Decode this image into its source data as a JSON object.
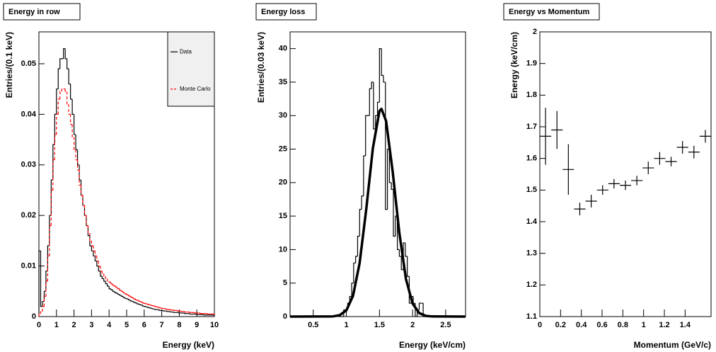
{
  "chart_data": [
    {
      "type": "histogram",
      "title": "Energy in row",
      "xlabel": "Energy (keV)",
      "ylabel": "Entries/(0.1 keV)",
      "xlim": [
        0,
        10
      ],
      "xticks": [
        0,
        1,
        2,
        3,
        4,
        5,
        6,
        7,
        8,
        9,
        10
      ],
      "ylim": [
        0,
        0.0563
      ],
      "yticks": [
        0,
        0.01,
        0.02,
        0.03,
        0.04,
        0.05
      ],
      "legend": "top-right",
      "bins": [
        0,
        0.1,
        0.2,
        0.3,
        0.4,
        0.5,
        0.6,
        0.7,
        0.8,
        0.9,
        1,
        1.1,
        1.2,
        1.3,
        1.4,
        1.5,
        1.6,
        1.7,
        1.8,
        1.9,
        2,
        2.1,
        2.2,
        2.3,
        2.4,
        2.5,
        2.6,
        2.7,
        2.8,
        2.9,
        3,
        3.1,
        3.2,
        3.3,
        3.4,
        3.5,
        3.6,
        3.7,
        3.8,
        3.9,
        4,
        4.1,
        4.2,
        4.3,
        4.4,
        4.5,
        4.6,
        4.7,
        4.8,
        4.9,
        5,
        5.1,
        5.2,
        5.3,
        5.4,
        5.5,
        5.6,
        5.7,
        5.8,
        5.9,
        6,
        6.1,
        6.2,
        6.3,
        6.4,
        6.5,
        6.6,
        6.7,
        6.8,
        6.9,
        7,
        7.1,
        7.2,
        7.3,
        7.4,
        7.5,
        7.6,
        7.7,
        7.8,
        7.9,
        8,
        8.1,
        8.2,
        8.3,
        8.4,
        8.5,
        8.6,
        8.7,
        8.8,
        8.9,
        9,
        9.1,
        9.2,
        9.3,
        9.4,
        9.5,
        9.6,
        9.7,
        9.8,
        9.9,
        10
      ],
      "series": [
        {
          "name": "Data",
          "color": "#000000",
          "line_style": "solid",
          "values": [
            0.013,
            0.002,
            0.003,
            0.005,
            0.009,
            0.014,
            0.02,
            0.027,
            0.034,
            0.04,
            0.045,
            0.049,
            0.051,
            0.051,
            0.053,
            0.051,
            0.049,
            0.046,
            0.043,
            0.04,
            0.036,
            0.033,
            0.03,
            0.027,
            0.024,
            0.022,
            0.02,
            0.018,
            0.016,
            0.014,
            0.013,
            0.012,
            0.011,
            0.01,
            0.009,
            0.008,
            0.0075,
            0.007,
            0.0065,
            0.006,
            0.0055,
            0.0053,
            0.005,
            0.0048,
            0.0046,
            0.0044,
            0.0042,
            0.004,
            0.0038,
            0.0036,
            0.0035,
            0.0033,
            0.0031,
            0.003,
            0.0028,
            0.0027,
            0.0025,
            0.0024,
            0.0023,
            0.0021,
            0.002,
            0.0019,
            0.0018,
            0.0017,
            0.0016,
            0.0015,
            0.0014,
            0.0014,
            0.0013,
            0.0012,
            0.0012,
            0.0011,
            0.0011,
            0.001,
            0.001,
            0.0009,
            0.0009,
            0.0008,
            0.0008,
            0.0008,
            0.0007,
            0.0007,
            0.0007,
            0.0006,
            0.0006,
            0.0006,
            0.0005,
            0.0005,
            0.0005,
            0.0005,
            0.0004,
            0.0004,
            0.0004,
            0.0004,
            0.0003,
            0.0003,
            0.0003,
            0.0003,
            0.0003,
            0.0003
          ]
        },
        {
          "name": "Monte Carlo",
          "color": "#ff0000",
          "line_style": "dashed",
          "values": [
            0.0005,
            0.001,
            0.002,
            0.004,
            0.007,
            0.012,
            0.018,
            0.025,
            0.031,
            0.036,
            0.04,
            0.043,
            0.0445,
            0.045,
            0.045,
            0.0445,
            0.042,
            0.04,
            0.038,
            0.0355,
            0.033,
            0.031,
            0.029,
            0.026,
            0.024,
            0.022,
            0.02,
            0.018,
            0.0165,
            0.015,
            0.014,
            0.013,
            0.012,
            0.011,
            0.01,
            0.009,
            0.0085,
            0.008,
            0.0075,
            0.007,
            0.0068,
            0.0065,
            0.0062,
            0.006,
            0.0057,
            0.0055,
            0.0052,
            0.005,
            0.0047,
            0.0045,
            0.0043,
            0.0041,
            0.0039,
            0.0037,
            0.0035,
            0.0033,
            0.0032,
            0.003,
            0.0029,
            0.0027,
            0.0026,
            0.0025,
            0.0024,
            0.0023,
            0.0022,
            0.0021,
            0.002,
            0.0019,
            0.0018,
            0.0017,
            0.0016,
            0.0016,
            0.0015,
            0.0014,
            0.0014,
            0.0013,
            0.0013,
            0.0012,
            0.0012,
            0.0011,
            0.0011,
            0.001,
            0.001,
            0.0009,
            0.0009,
            0.0009,
            0.0008,
            0.0008,
            0.0008,
            0.0007,
            0.0007,
            0.0007,
            0.0006,
            0.0006,
            0.0006,
            0.0006,
            0.0005,
            0.0005,
            0.0005,
            0.0005
          ]
        }
      ]
    },
    {
      "type": "histogram",
      "title": "Energy loss",
      "xlabel": "Energy (keV/cm)",
      "ylabel": "Entries/(0.03 keV)",
      "xlim": [
        0.15,
        2.8
      ],
      "xticks": [
        0.5,
        1,
        1.5,
        2,
        2.5
      ],
      "ylim": [
        0,
        42.5
      ],
      "yticks": [
        0,
        5,
        10,
        15,
        20,
        25,
        30,
        35,
        40
      ],
      "color": "#000000",
      "bins": [
        0.9,
        0.93,
        0.96,
        0.99,
        1.02,
        1.05,
        1.08,
        1.11,
        1.14,
        1.17,
        1.2,
        1.23,
        1.26,
        1.29,
        1.32,
        1.35,
        1.38,
        1.41,
        1.44,
        1.47,
        1.5,
        1.53,
        1.56,
        1.59,
        1.62,
        1.65,
        1.68,
        1.71,
        1.74,
        1.77,
        1.8,
        1.83,
        1.86,
        1.89,
        1.92,
        1.95,
        1.98,
        2.01,
        2.04,
        2.07,
        2.1,
        2.13,
        2.16,
        2.19,
        2.22
      ],
      "values": [
        0,
        0,
        1,
        1,
        2,
        3,
        5,
        8,
        9,
        12,
        16,
        18,
        24,
        30,
        30,
        34,
        35,
        28,
        30,
        32,
        40,
        36,
        35,
        16,
        25,
        20,
        19,
        12,
        15,
        10,
        9,
        7,
        11,
        9,
        6,
        2,
        3,
        2,
        0,
        1,
        2,
        2,
        0,
        0
      ],
      "fit": {
        "color": "#000000",
        "x": [
          0.15,
          0.8,
          0.9,
          1.0,
          1.1,
          1.2,
          1.3,
          1.4,
          1.5,
          1.53,
          1.6,
          1.7,
          1.8,
          1.9,
          2.0,
          2.1,
          2.2,
          2.3,
          2.8
        ],
        "values": [
          0,
          0.03,
          0.22,
          0.93,
          3.08,
          7.96,
          16.0,
          25.1,
          30.7,
          31,
          29.2,
          21.6,
          12.5,
          5.6,
          1.96,
          0.53,
          0.11,
          0.02,
          0
        ]
      }
    },
    {
      "type": "errorbar",
      "title": "Energy vs Momentum",
      "xlabel": "Momentum (GeV/c)",
      "ylabel": "Energy (keV/cm)",
      "xlim": [
        0,
        1.65
      ],
      "xticks": [
        0,
        0.2,
        0.4,
        0.6,
        0.8,
        1,
        1.2,
        1.4
      ],
      "ylim": [
        1.1,
        2
      ],
      "yticks": [
        1.1,
        1.2,
        1.3,
        1.4,
        1.5,
        1.6,
        1.7,
        1.8,
        1.9,
        2
      ],
      "color": "#000000",
      "x": [
        0.055,
        0.165,
        0.275,
        0.385,
        0.495,
        0.605,
        0.715,
        0.825,
        0.935,
        1.045,
        1.155,
        1.265,
        1.375,
        1.485,
        1.595
      ],
      "xerr": [
        0.055,
        0.055,
        0.055,
        0.055,
        0.055,
        0.055,
        0.055,
        0.055,
        0.055,
        0.055,
        0.055,
        0.055,
        0.055,
        0.055,
        0.055
      ],
      "values": [
        1.67,
        1.69,
        1.565,
        1.44,
        1.465,
        1.5,
        1.52,
        1.515,
        1.53,
        1.57,
        1.6,
        1.59,
        1.635,
        1.62,
        1.67
      ],
      "errors": [
        0.09,
        0.06,
        0.08,
        0.02,
        0.02,
        0.015,
        0.015,
        0.015,
        0.015,
        0.02,
        0.02,
        0.015,
        0.02,
        0.02,
        0.02
      ]
    }
  ]
}
